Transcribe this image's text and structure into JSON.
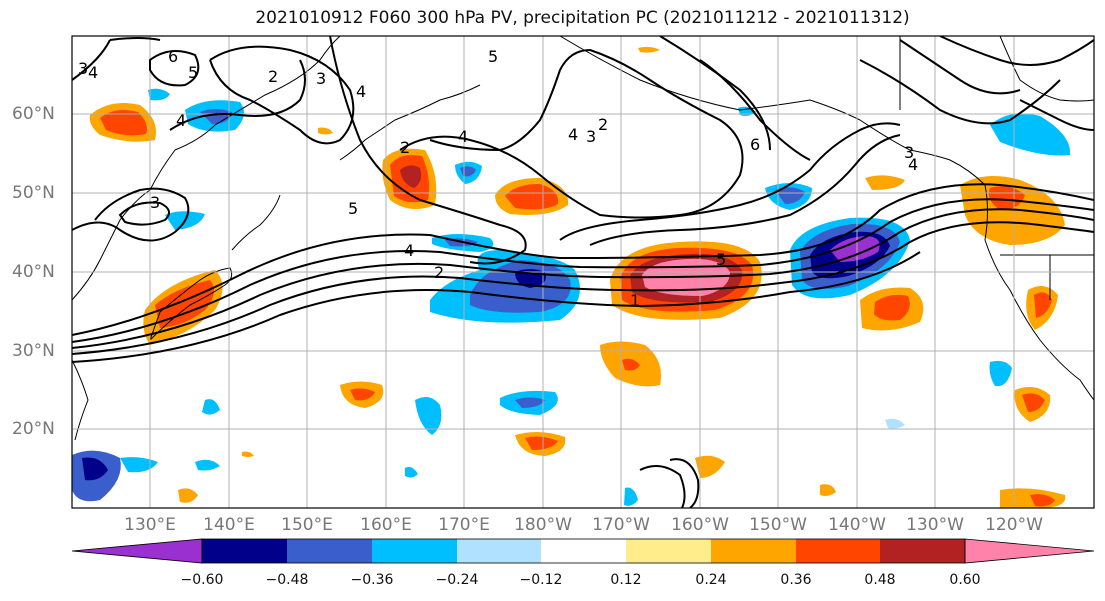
{
  "title": "2021010912 F060 300 hPa PV, precipitation PC (2021011212 - 2021011312)",
  "lat_labels": [
    "60°N",
    "50°N",
    "40°N",
    "30°N",
    "20°N"
  ],
  "lon_labels": [
    "130°E",
    "140°E",
    "150°E",
    "160°E",
    "170°E",
    "180°W",
    "170°W",
    "160°W",
    "150°W",
    "140°W",
    "130°W",
    "120°W"
  ],
  "colorbar": {
    "colors": [
      "#9b30d0",
      "#00008b",
      "#3a5fcd",
      "#00bfff",
      "#b0e2ff",
      "#ffffff",
      "#ffec8b",
      "#ffa500",
      "#ff4500",
      "#b22222",
      "#ff82ab"
    ],
    "tick_labels": [
      "−0.60",
      "−0.48",
      "−0.36",
      "−0.24",
      "−0.12",
      "0.12",
      "0.24",
      "0.36",
      "0.48",
      "0.60"
    ]
  },
  "contour_labels": [
    "6",
    "5",
    "2",
    "3",
    "4",
    "3",
    "4",
    "4",
    "2",
    "5",
    "4",
    "3",
    "2",
    "6",
    "4",
    "3",
    "3",
    "4",
    "5",
    "4",
    "2",
    "1",
    "5"
  ]
}
